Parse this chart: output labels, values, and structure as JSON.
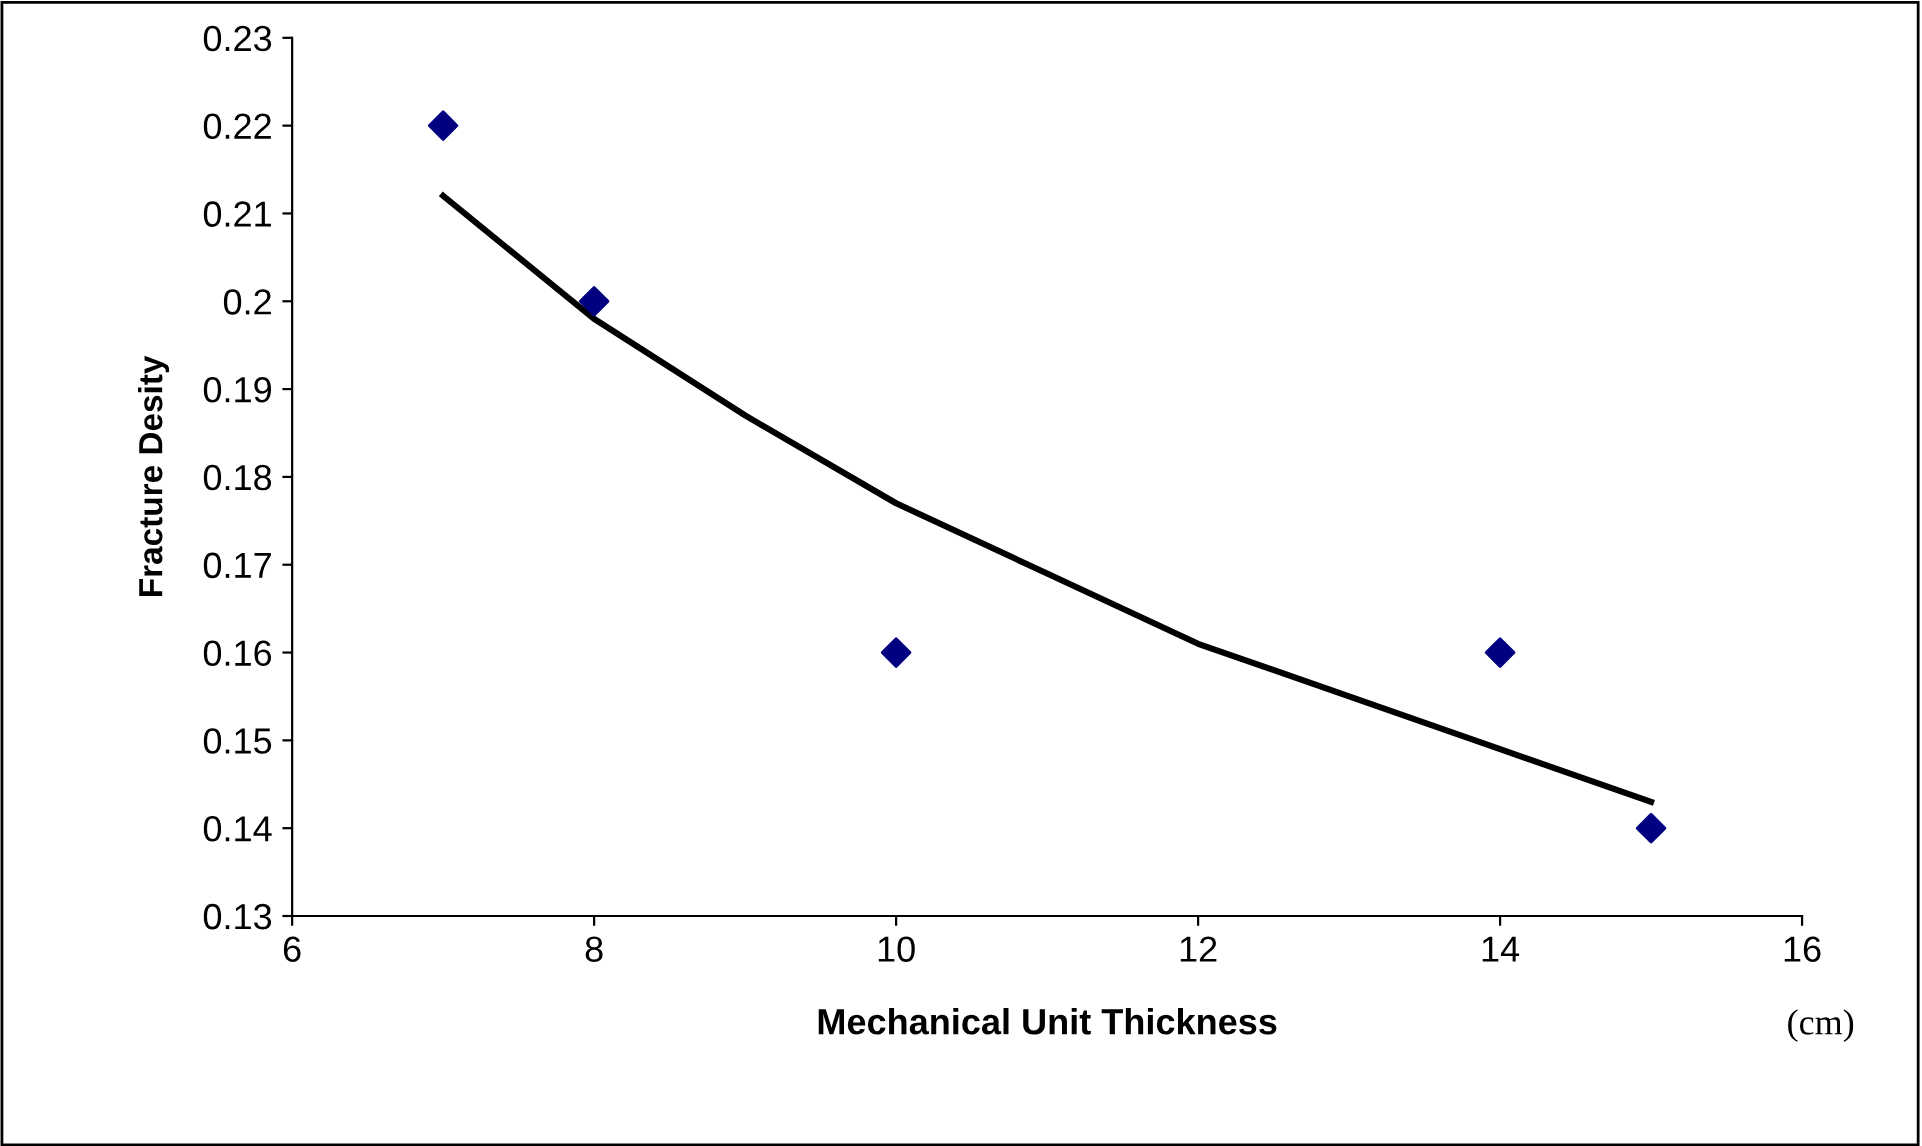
{
  "chart_data": {
    "type": "scatter",
    "xlabel": "Mechanical Unit Thickness",
    "ylabel": "Fracture Desity",
    "annotations": [
      "(cm)"
    ],
    "series": [
      {
        "color": "#000080",
        "marker": "diamond",
        "x": [
          7,
          8,
          10,
          14,
          15
        ],
        "values": [
          0.22,
          0.2,
          0.16,
          0.16,
          0.14
        ]
      },
      {
        "type": "line",
        "color": "#000000",
        "marker": "none",
        "line_style": "solid",
        "x": [
          7,
          8,
          9,
          10,
          11,
          12,
          13,
          14,
          15
        ],
        "values": [
          0.212,
          0.198,
          0.187,
          0.177,
          0.169,
          0.161,
          0.155,
          0.149,
          0.143
        ]
      }
    ],
    "xlim": [
      6,
      16
    ],
    "xticks": [
      6,
      8,
      10,
      12,
      14,
      16
    ],
    "ylim": [
      0.13,
      0.23
    ],
    "yticks": [
      0.13,
      0.14,
      0.15,
      0.16,
      0.17,
      0.18,
      0.19,
      0.2,
      0.21,
      0.22,
      0.23
    ],
    "grid": false,
    "legend": false
  }
}
